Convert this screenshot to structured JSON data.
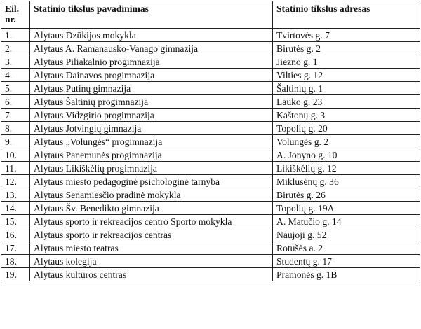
{
  "table": {
    "headers": [
      "Eil. nr.",
      "Statinio tikslus pavadinimas",
      "Statinio tikslus adresas"
    ],
    "rows": [
      {
        "nr": "1.",
        "name": "Alytaus Dzūkijos mokykla",
        "address": "Tvirtovės g. 7"
      },
      {
        "nr": "2.",
        "name": "Alytaus A. Ramanausko-Vanago gimnazija",
        "address": "Birutės g. 2"
      },
      {
        "nr": "3.",
        "name": "Alytaus Piliakalnio progimnazija",
        "address": "Jiezno g. 1"
      },
      {
        "nr": "4.",
        "name": "Alytaus Dainavos progimnazija",
        "address": "Vilties g. 12"
      },
      {
        "nr": "5.",
        "name": "Alytaus Putinų gimnazija",
        "address": "Šaltinių g. 1"
      },
      {
        "nr": "6.",
        "name": "Alytaus Šaltinių progimnazija",
        "address": "Lauko g. 23"
      },
      {
        "nr": "7.",
        "name": "Alytaus Vidzgirio progimnazija",
        "address": "Kaštonų g. 3"
      },
      {
        "nr": "8.",
        "name": "Alytaus Jotvingių gimnazija",
        "address": "Topolių g. 20"
      },
      {
        "nr": "9.",
        "name": "Alytaus „Volungės“ progimnazija",
        "address": "Volungės g. 2"
      },
      {
        "nr": "10.",
        "name": "Alytaus Panemunės progimnazija",
        "address": "A. Jonyno g. 10"
      },
      {
        "nr": "11.",
        "name": "Alytaus Likiškėlių progimnazija",
        "address": "Likiškėlių g. 12"
      },
      {
        "nr": "12.",
        "name": "Alytaus miesto pedagoginė psichologinė tarnyba",
        "address": "Miklusėnų g. 36"
      },
      {
        "nr": "13.",
        "name": "Alytaus Senamiesčio pradinė mokykla",
        "address": "Birutės g. 26"
      },
      {
        "nr": "14.",
        "name": "Alytaus Šv. Benedikto gimnazija",
        "address": "Topolių g. 19A"
      },
      {
        "nr": "15.",
        "name": "Alytaus sporto ir rekreacijos centro Sporto mokykla",
        "address": "A. Matučio g. 14"
      },
      {
        "nr": "16.",
        "name": "Alytaus sporto ir rekreacijos centras",
        "address": "Naujoji g. 52"
      },
      {
        "nr": "17.",
        "name": "Alytaus miesto teatras",
        "address": "Rotušės a. 2"
      },
      {
        "nr": "18.",
        "name": "Alytaus kolegija",
        "address": "Studentų g. 17"
      },
      {
        "nr": "19.",
        "name": "Alytaus kultūros centras",
        "address": "Pramonės g. 1B"
      }
    ]
  }
}
